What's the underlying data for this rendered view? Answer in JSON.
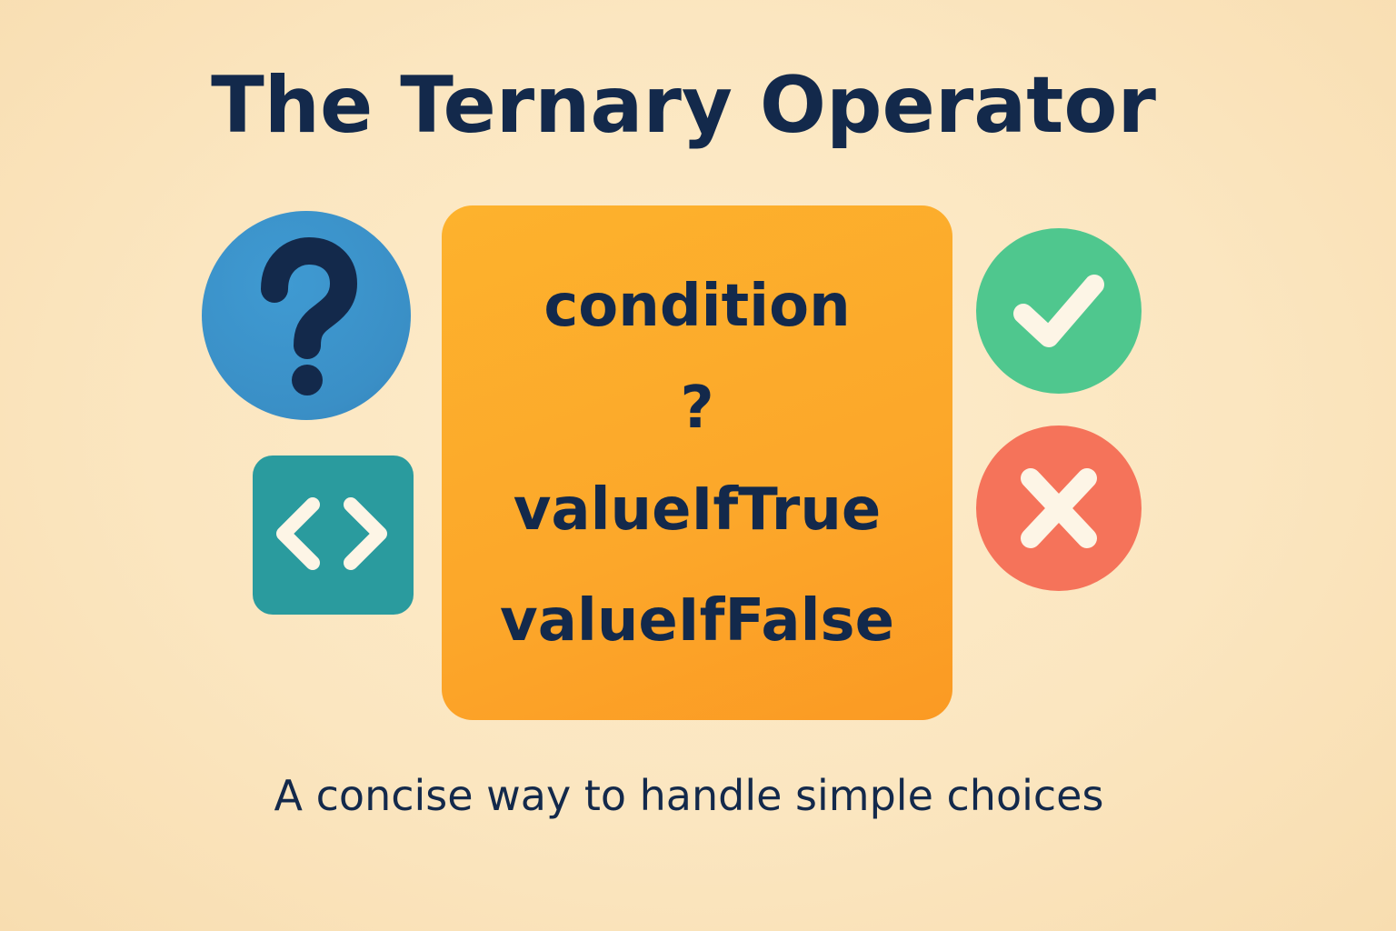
{
  "title": "The Ternary Operator",
  "subtitle": "A concise way to handle simple choices",
  "code": {
    "condition": "condition",
    "operator": "?",
    "value_if_true": "valueIfTrue",
    "value_if_false": "valueIfFalse"
  },
  "icons": {
    "question": "question-mark-icon",
    "code": "code-brackets-icon",
    "check": "checkmark-icon",
    "cross": "cross-icon"
  },
  "colors": {
    "title_text": "#13294b",
    "code_box": "#fca72a",
    "question_circle": "#3a8fc6",
    "code_square": "#2a9b9e",
    "check_circle": "#4fc78e",
    "cross_circle": "#f5735a"
  }
}
